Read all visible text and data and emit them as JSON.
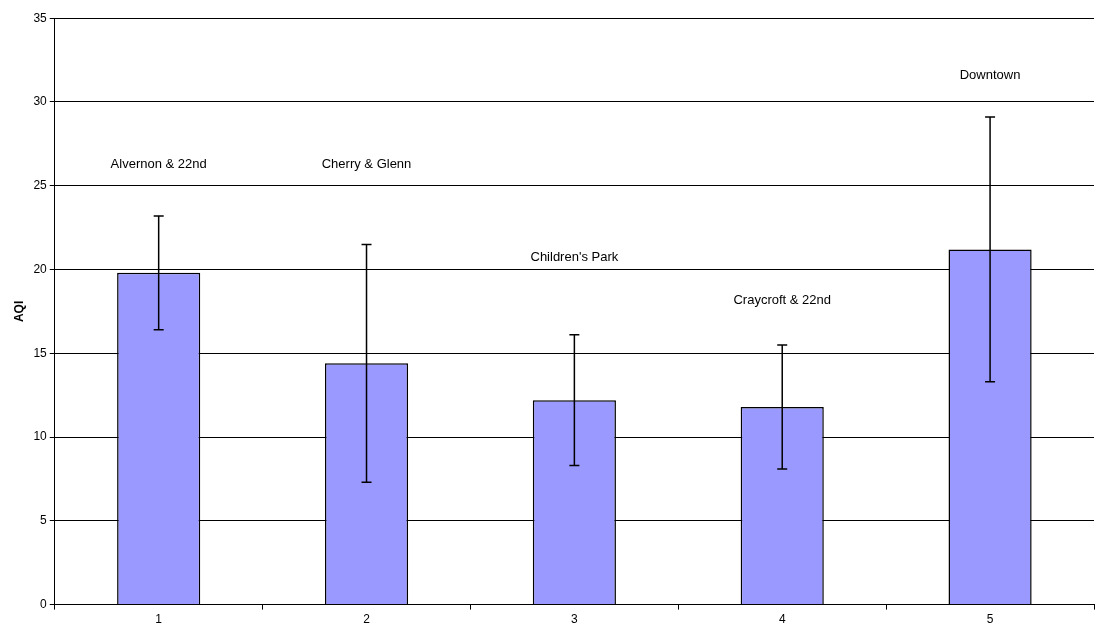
{
  "chart_data": {
    "type": "bar",
    "ylabel": "AQI",
    "categories": [
      "1",
      "2",
      "3",
      "4",
      "5"
    ],
    "values": [
      19.8,
      14.4,
      12.2,
      11.8,
      21.2
    ],
    "errors": [
      3.4,
      7.1,
      3.9,
      3.7,
      7.9
    ],
    "color": "#9999ff",
    "ylim": [
      0,
      35
    ],
    "yticks": [
      0,
      5,
      10,
      15,
      20,
      25,
      30,
      35
    ],
    "grid": "y",
    "legend": false,
    "annotations": [
      "Alvernon & 22nd",
      "Cherry & Glenn",
      "Children's Park",
      "Craycroft & 22nd",
      "Downtown"
    ]
  }
}
